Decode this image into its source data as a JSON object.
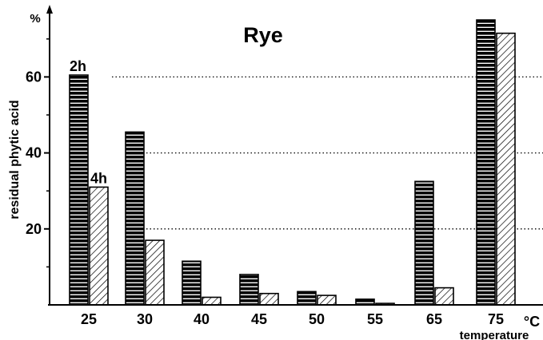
{
  "chart_data": {
    "type": "bar",
    "title": "Rye",
    "ylabel": "residual phytic acid",
    "y_unit": "%",
    "xlabel": "temperature",
    "x_unit": "°C",
    "categories": [
      "25",
      "30",
      "40",
      "45",
      "50",
      "55",
      "65",
      "75"
    ],
    "series": [
      {
        "name": "2h",
        "values": [
          60.5,
          45.5,
          11.5,
          8,
          3.5,
          1.5,
          32.5,
          75
        ]
      },
      {
        "name": "4h",
        "values": [
          31,
          17,
          2,
          3,
          2.5,
          0.4,
          4.5,
          71.5
        ]
      }
    ],
    "y_ticks": [
      "20",
      "40",
      "60"
    ],
    "ylim": [
      0,
      77
    ],
    "grid": "dotted horizontal lines at 20, 40, 60 (right of the bars)",
    "legend": "none; series names printed above the first pair of bars",
    "colors": {
      "series_2h": "#000000",
      "series_4h": "#ffffff",
      "axis": "#000000"
    }
  }
}
